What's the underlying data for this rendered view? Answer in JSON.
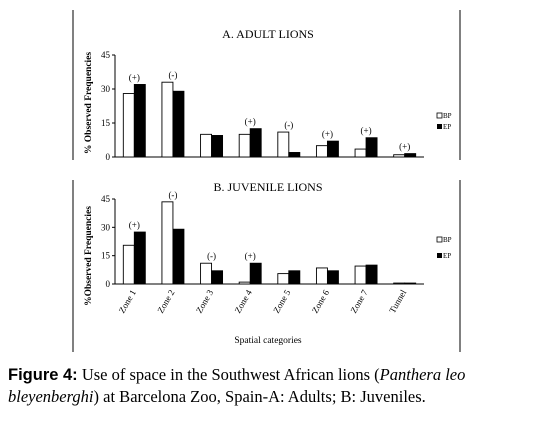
{
  "legend": {
    "bp": "BP",
    "ep": "EP"
  },
  "xlabel": "Spatial categories",
  "caption": {
    "lead": "Figure 4:",
    "t1": " Use of space in the Southwest African lions (",
    "species": "Panthera leo bleyenberghi",
    "t2": ") at Barcelona Zoo, Spain-A: Adults; B: Juveniles."
  },
  "chart_data": [
    {
      "type": "bar",
      "title": "A. ADULT LIONS",
      "ylabel": "% Observed Frequencies",
      "ylim": [
        0,
        45
      ],
      "yticks": [
        0,
        15,
        30,
        45
      ],
      "categories": [
        "Zone 1",
        "Zone 2",
        "Zone 3",
        "Zone 4",
        "Zone 5",
        "Zone 6",
        "Zone 7",
        "Tunnel"
      ],
      "series": [
        {
          "name": "BP",
          "color": "#ffffff",
          "values": [
            28,
            33,
            10,
            10,
            11,
            5,
            3.5,
            1
          ]
        },
        {
          "name": "EP",
          "color": "#000000",
          "values": [
            32,
            29,
            9.5,
            12.5,
            2,
            7,
            8.5,
            1.5
          ]
        }
      ],
      "annotations": [
        "(+)",
        "(-)",
        "",
        "(+)",
        "(-)",
        "(+)",
        "(+)",
        "(+)"
      ],
      "legend_position": "right"
    },
    {
      "type": "bar",
      "title": "B. JUVENILE LIONS",
      "ylabel": "%Observed Frequencies",
      "ylim": [
        0,
        45
      ],
      "yticks": [
        0,
        15,
        30,
        45
      ],
      "categories": [
        "Zone 1",
        "Zone 2",
        "Zone 3",
        "Zone 4",
        "Zone 5",
        "Zone 6",
        "Zone 7",
        "Tunnel"
      ],
      "series": [
        {
          "name": "BP",
          "color": "#ffffff",
          "values": [
            20.5,
            43.5,
            11,
            1,
            5.5,
            8.5,
            9.5,
            0.5
          ]
        },
        {
          "name": "EP",
          "color": "#000000",
          "values": [
            27.5,
            29,
            7,
            11,
            7,
            7,
            10,
            0.5
          ]
        }
      ],
      "annotations": [
        "(+)",
        "(-)",
        "(-)",
        "(+)",
        "",
        "",
        "",
        ""
      ],
      "legend_position": "right"
    }
  ]
}
